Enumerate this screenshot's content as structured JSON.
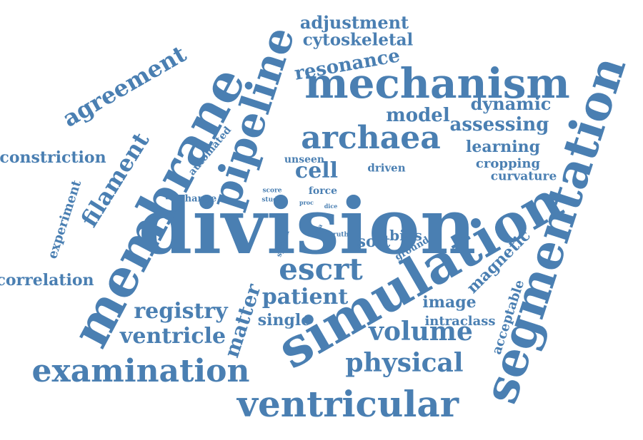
{
  "accent_color": "#4a7fb2",
  "words": [
    {
      "text": "division",
      "rot": 0
    },
    {
      "text": "simulation",
      "rot": -30
    },
    {
      "text": "segmentation",
      "rot": -72
    },
    {
      "text": "membrane",
      "rot": -62
    },
    {
      "text": "mechanism",
      "rot": 0
    },
    {
      "text": "pipeline",
      "rot": -72
    },
    {
      "text": "ventricular",
      "rot": 0
    },
    {
      "text": "examination",
      "rot": 0
    },
    {
      "text": "archaea",
      "rot": 0
    },
    {
      "text": "escrt",
      "rot": 0
    },
    {
      "text": "volume",
      "rot": 0
    },
    {
      "text": "physical",
      "rot": 0
    },
    {
      "text": "agreement",
      "rot": -30
    },
    {
      "text": "filament",
      "rot": -58
    },
    {
      "text": "registry",
      "rot": 0
    },
    {
      "text": "ventricle",
      "rot": 0
    },
    {
      "text": "patient",
      "rot": 0
    },
    {
      "text": "cell",
      "rot": 0
    },
    {
      "text": "matter",
      "rot": -72
    },
    {
      "text": "resonance",
      "rot": -10
    },
    {
      "text": "model",
      "rot": 0
    },
    {
      "text": "assessing",
      "rot": 0
    },
    {
      "text": "dynamic",
      "rot": 0
    },
    {
      "text": "adjustment",
      "rot": 0
    },
    {
      "text": "cytoskeletal",
      "rot": 0
    },
    {
      "text": "constriction",
      "rot": 0
    },
    {
      "text": "correlation",
      "rot": 0
    },
    {
      "text": "magnetic",
      "rot": -45
    },
    {
      "text": "image",
      "rot": 0
    },
    {
      "text": "learning",
      "rot": 0
    },
    {
      "text": "single",
      "rot": 0
    },
    {
      "text": "experiment",
      "rot": -72
    },
    {
      "text": "soft",
      "rot": 0
    },
    {
      "text": "bias",
      "rot": 0
    },
    {
      "text": "acceptable",
      "rot": -72
    },
    {
      "text": "intraclass",
      "rot": 0
    },
    {
      "text": "cropping",
      "rot": 0
    },
    {
      "text": "curvature",
      "rot": 0
    },
    {
      "text": "automated",
      "rot": -50
    },
    {
      "text": "driven",
      "rot": 0
    },
    {
      "text": "unseen",
      "rot": 0
    },
    {
      "text": "force",
      "rot": 0
    },
    {
      "text": "change",
      "rot": 0
    },
    {
      "text": "ground",
      "rot": -30
    },
    {
      "text": "truth",
      "rot": 0
    },
    {
      "text": "system",
      "rot": -72
    },
    {
      "text": "score",
      "rot": 0
    },
    {
      "text": "study",
      "rot": 0
    },
    {
      "text": "proc",
      "rot": 0
    },
    {
      "text": "dice",
      "rot": 0
    },
    {
      "text": "data",
      "rot": -60
    }
  ]
}
